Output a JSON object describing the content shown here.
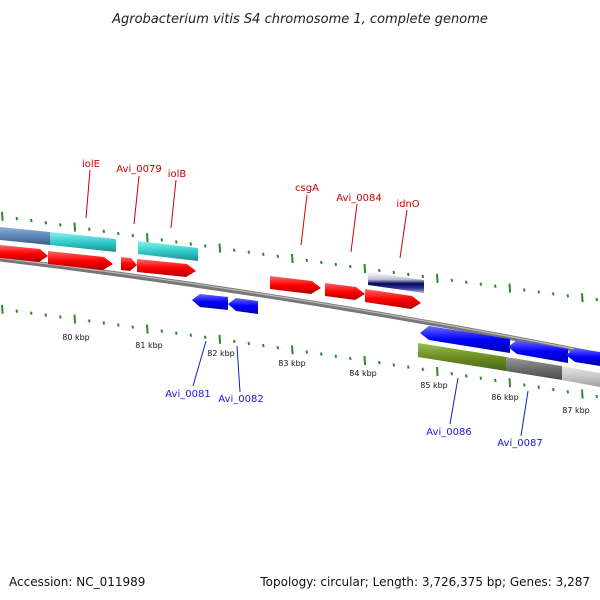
{
  "title": "Agrobacterium vitis S4 chromosome 1, complete genome",
  "footer": {
    "accession": "Accession: NC_011989",
    "topology": "Topology: circular; Length: 3,726,375 bp; Genes: 3,287"
  },
  "colors": {
    "forward_cds": "#ff0000",
    "reverse_cds": "#0000ff",
    "forward_label": "#cc0000",
    "reverse_label": "#1a1acc",
    "backbone": "#808080",
    "tick": "#2b8a2b",
    "cyan_feature": "#33cccc",
    "steelblue_feature": "#5b88b8",
    "olive_feature": "#6b8e23"
  },
  "scale_labels": [
    "80 kbp",
    "81 kbp",
    "82 kbp",
    "83 kbp",
    "84 kbp",
    "85 kbp",
    "86 kbp",
    "87 kbp"
  ],
  "forward_gene_labels": [
    "iolE",
    "Avi_0079",
    "iolB",
    "csgA",
    "Avi_0084",
    "idnO"
  ],
  "reverse_gene_labels": [
    "Avi_0081",
    "Avi_0082",
    "Avi_0086",
    "Avi_0087"
  ]
}
